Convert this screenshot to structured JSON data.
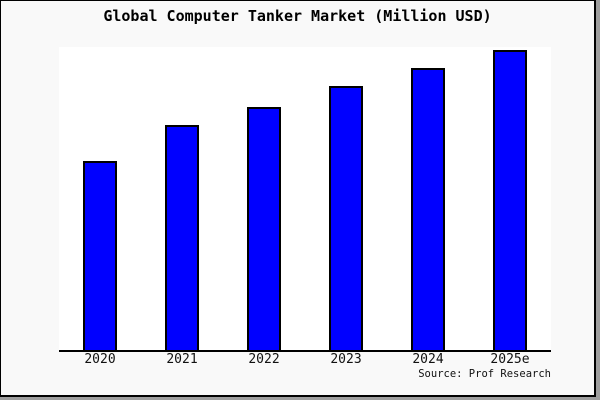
{
  "title": "Global Computer Tanker Market (Million USD)",
  "source": "Source: Prof Research",
  "colors": {
    "bar_fill": "#0000ff",
    "bar_border": "#000000",
    "page_background": "#f9f9f9",
    "plot_background": "#ffffff",
    "axis": "#000000",
    "frame_border": "#000000"
  },
  "chart_data": {
    "type": "bar",
    "title": "Global Computer Tanker Market (Million USD)",
    "categories": [
      "2020",
      "2021",
      "2022",
      "2023",
      "2024",
      "2025e"
    ],
    "values": [
      63,
      75,
      81,
      88,
      94,
      100
    ],
    "units": "relative index estimated from bar heights (no y-axis ticks shown; 2025e = 100)",
    "xlabel": "",
    "ylabel": "",
    "ylim": [
      0,
      105
    ],
    "grid": false,
    "legend": "none",
    "bar_color": "#0000ff",
    "source": "Source: Prof Research"
  }
}
